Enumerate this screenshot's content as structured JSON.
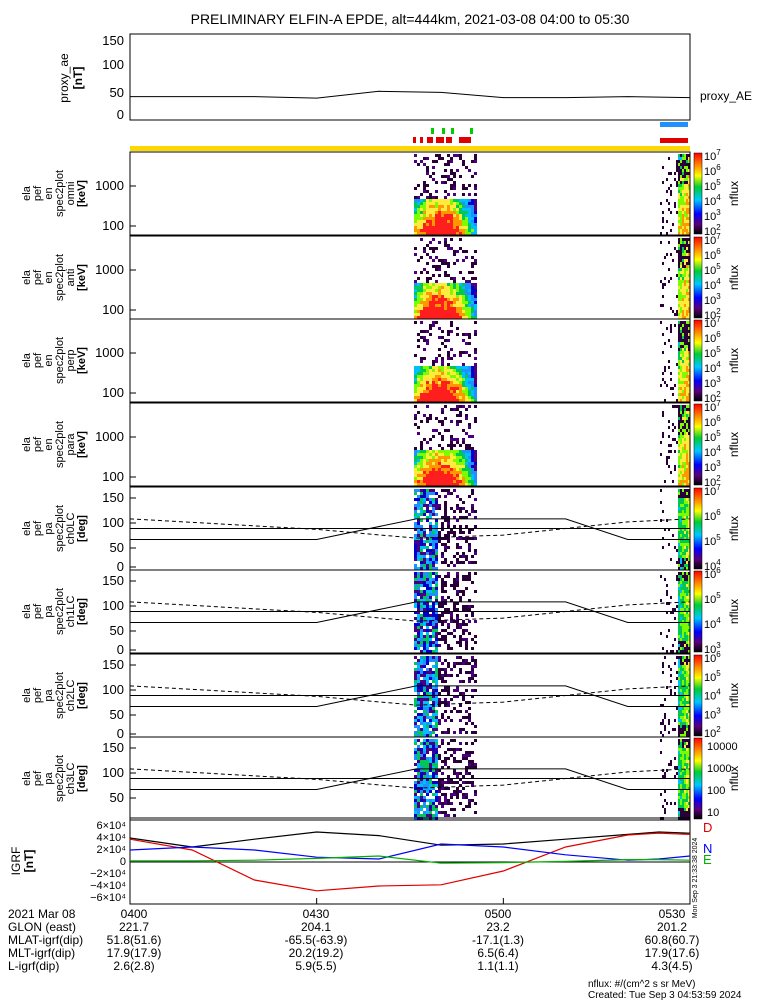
{
  "title": "PRELIMINARY ELFIN-A EPDE, alt=444km, 2021-03-08 04:00 to 05:30",
  "colors": {
    "yellow_bar": "#ffd700",
    "blue_bar": "#1e90ff",
    "red_bar": "#e00000",
    "green_tick": "#00cc00"
  },
  "panels": [
    {
      "id": "proxy_ae",
      "ylabel": [
        "proxy_ae",
        "[nT]"
      ],
      "yticks": [
        "150",
        "100",
        "50",
        "0"
      ],
      "right_label": "proxy_AE",
      "series": {
        "x_min": [
          0,
          20,
          30,
          40,
          50,
          60,
          70,
          80,
          90
        ],
        "y_nT": [
          35,
          35,
          32,
          45,
          43,
          33,
          33,
          35,
          33
        ]
      }
    },
    {
      "id": "omni",
      "ylabel": [
        "ela",
        "pef",
        "en",
        "spec2plot",
        "omni",
        "[keV]"
      ],
      "yticks": [
        "1000",
        "100"
      ],
      "cb_top": 7,
      "cb_bot": 2,
      "cb_label": "nflux"
    },
    {
      "id": "anti",
      "ylabel": [
        "ela",
        "pef",
        "en",
        "spec2plot",
        "anti",
        "[keV]"
      ],
      "yticks": [
        "1000",
        "100"
      ],
      "cb_top": 7,
      "cb_bot": 2,
      "cb_label": "nflux"
    },
    {
      "id": "perp",
      "ylabel": [
        "ela",
        "pef",
        "en",
        "spec2plot",
        "perp",
        "[keV]"
      ],
      "yticks": [
        "1000",
        "100"
      ],
      "cb_top": 7,
      "cb_bot": 2,
      "cb_label": "nflux"
    },
    {
      "id": "para",
      "ylabel": [
        "ela",
        "pef",
        "en",
        "spec2plot",
        "para",
        "[keV]"
      ],
      "yticks": [
        "1000",
        "100"
      ],
      "cb_top": 7,
      "cb_bot": 2,
      "cb_label": "nflux"
    },
    {
      "id": "ch0LC",
      "ylabel": [
        "ela",
        "pef",
        "pa",
        "spec2plot",
        "ch0LC",
        "[deg]"
      ],
      "yticks": [
        "150",
        "100",
        "50",
        "0"
      ],
      "cb_top": 7,
      "cb_bot": 4,
      "cb_label": "nflux"
    },
    {
      "id": "ch1LC",
      "ylabel": [
        "ela",
        "pef",
        "pa",
        "spec2plot",
        "ch1LC",
        "[deg]"
      ],
      "yticks": [
        "150",
        "100",
        "50",
        "0"
      ],
      "cb_top": 6,
      "cb_bot": 3,
      "cb_label": "nflux"
    },
    {
      "id": "ch2LC",
      "ylabel": [
        "ela",
        "pef",
        "pa",
        "spec2plot",
        "ch2LC",
        "[deg]"
      ],
      "yticks": [
        "150",
        "100",
        "50",
        "0"
      ],
      "cb_top": 6,
      "cb_bot": 2,
      "cb_label": "nflux"
    },
    {
      "id": "ch3LC",
      "ylabel": [
        "ela",
        "pef",
        "pa",
        "spec2plot",
        "ch3LC",
        "[deg]"
      ],
      "yticks": [
        "150",
        "100",
        "50"
      ],
      "cb_ticks": [
        "10000",
        "1000",
        "100",
        "10"
      ],
      "cb_label": "nflux"
    }
  ],
  "igrf": {
    "ylabel": [
      "IGRF",
      "[nT]"
    ],
    "yticks": [
      "6×10⁴",
      "4×10⁴",
      "2×10⁴",
      "0",
      "−2×10⁴",
      "−4×10⁴",
      "−6×10⁴"
    ],
    "legend": [
      {
        "label": "D",
        "color": "#e00000"
      },
      {
        "label": "N",
        "color": "#0000ff"
      },
      {
        "label": "E",
        "color": "#00b000"
      }
    ],
    "side_text": "Mon Sep  3 21:33:38 2024"
  },
  "chart_data": {
    "type": "line",
    "x_times": [
      "0400",
      "0430",
      "0500",
      "0530"
    ],
    "igrf_x_min": [
      0,
      10,
      20,
      30,
      40,
      50,
      60,
      70,
      80,
      85,
      90
    ],
    "igrf_D": [
      38000,
      20000,
      -30000,
      -48000,
      -40000,
      -38000,
      -15000,
      25000,
      45000,
      48000,
      46000
    ],
    "igrf_N": [
      20000,
      25000,
      20000,
      8000,
      5000,
      30000,
      25000,
      12000,
      3000,
      5000,
      10000
    ],
    "igrf_E": [
      2000,
      2000,
      3000,
      6000,
      10000,
      -2000,
      -1000,
      1000,
      4000,
      4000,
      3000
    ],
    "igrf_total": [
      40000,
      25000,
      38000,
      50000,
      44000,
      28000,
      30000,
      38000,
      46000,
      50000,
      48000
    ]
  },
  "footer": {
    "rows": [
      {
        "label": "2021 Mar 08",
        "values": [
          "0400",
          "0430",
          "0500",
          "0530"
        ]
      },
      {
        "label": "GLON (east)",
        "values": [
          "221.7",
          "204.1",
          "23.2",
          "201.2"
        ]
      },
      {
        "label": "MLAT-igrf(dip)",
        "values": [
          "51.8(51.6)",
          "-65.5(-63.9)",
          "-17.1(1.3)",
          "60.8(60.7)"
        ]
      },
      {
        "label": "MLT-igrf(dip)",
        "values": [
          "17.9(17.9)",
          "20.2(19.2)",
          "6.5(6.4)",
          "17.9(17.6)"
        ]
      },
      {
        "label": "L-igrf(dip)",
        "values": [
          "2.6(2.8)",
          "5.9(5.5)",
          "1.1(1.1)",
          "4.3(4.5)"
        ]
      }
    ],
    "units": "nflux: #/(cm^2 s sr MeV)",
    "created": "Created: Tue Sep  3 04:53:59 2024"
  }
}
